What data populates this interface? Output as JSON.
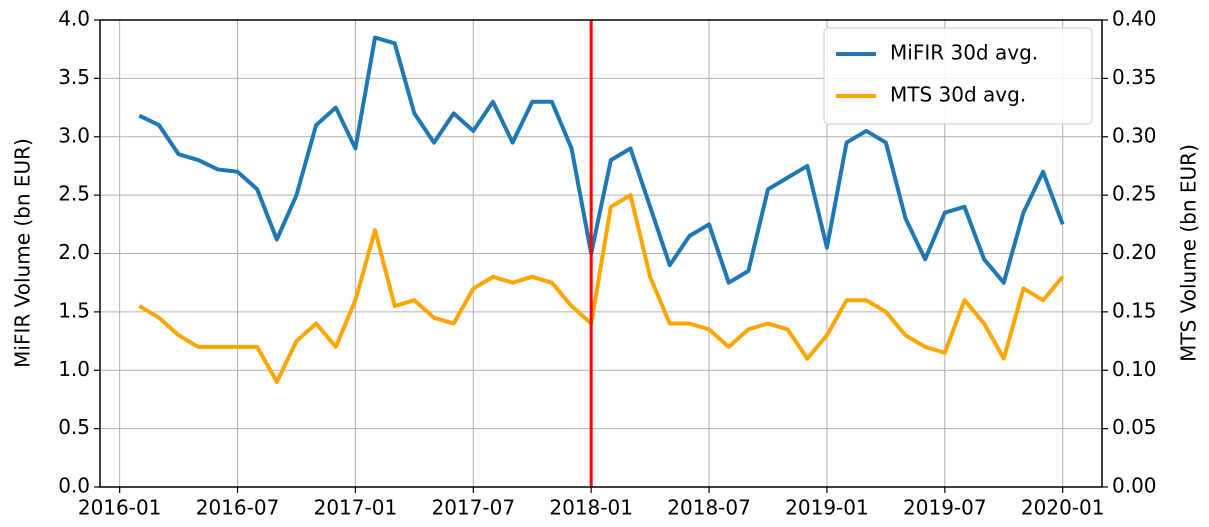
{
  "chart_data": {
    "type": "line",
    "y_label": "MiFIR Volume (bn EUR)",
    "y2_label": "MTS Volume (bn EUR)",
    "x": [
      "2016-02",
      "2016-03",
      "2016-04",
      "2016-05",
      "2016-06",
      "2016-07",
      "2016-08",
      "2016-09",
      "2016-10",
      "2016-11",
      "2016-12",
      "2017-01",
      "2017-02",
      "2017-03",
      "2017-04",
      "2017-05",
      "2017-06",
      "2017-07",
      "2017-08",
      "2017-09",
      "2017-10",
      "2017-11",
      "2017-12",
      "2018-01",
      "2018-02",
      "2018-03",
      "2018-04",
      "2018-05",
      "2018-06",
      "2018-07",
      "2018-08",
      "2018-09",
      "2018-10",
      "2018-11",
      "2018-12",
      "2019-01",
      "2019-02",
      "2019-03",
      "2019-04",
      "2019-05",
      "2019-06",
      "2019-07",
      "2019-08",
      "2019-09",
      "2019-10",
      "2019-11",
      "2019-12",
      "2020-01"
    ],
    "series": [
      {
        "name": "MiFIR 30d avg.",
        "color": "#1f77b4",
        "values": [
          3.18,
          3.1,
          2.85,
          2.8,
          2.72,
          2.7,
          2.55,
          2.12,
          2.5,
          3.1,
          3.25,
          2.9,
          3.85,
          3.8,
          3.2,
          2.95,
          3.2,
          3.05,
          3.3,
          2.95,
          3.3,
          3.3,
          2.9,
          2.0,
          2.8,
          2.9,
          2.4,
          1.9,
          2.15,
          2.25,
          1.75,
          1.85,
          2.55,
          2.65,
          2.75,
          2.05,
          2.95,
          3.05,
          2.95,
          2.3,
          1.95,
          2.35,
          2.4,
          1.95,
          1.75,
          2.35,
          2.7,
          2.25
        ]
      },
      {
        "name": "MTS 30d avg.",
        "color": "#ffa500",
        "axis": "y2",
        "values": [
          0.155,
          0.145,
          0.13,
          0.12,
          0.12,
          0.12,
          0.12,
          0.09,
          0.125,
          0.14,
          0.12,
          0.16,
          0.22,
          0.155,
          0.16,
          0.145,
          0.14,
          0.17,
          0.18,
          0.175,
          0.18,
          0.175,
          0.155,
          0.14,
          0.24,
          0.25,
          0.18,
          0.14,
          0.14,
          0.135,
          0.12,
          0.135,
          0.14,
          0.135,
          0.11,
          0.13,
          0.16,
          0.16,
          0.15,
          0.13,
          0.12,
          0.115,
          0.16,
          0.14,
          0.11,
          0.17,
          0.16,
          0.18
        ]
      }
    ],
    "xlim": [
      "2015-12",
      "2020-03"
    ],
    "xticks": [
      "2016-01",
      "2016-07",
      "2017-01",
      "2017-07",
      "2018-01",
      "2018-07",
      "2019-01",
      "2019-07",
      "2020-01"
    ],
    "ylim": [
      0,
      4
    ],
    "yticks": [
      {
        "value": 0,
        "label": "0.0"
      },
      {
        "value": 0.5,
        "label": "0.5"
      },
      {
        "value": 1,
        "label": "1.0"
      },
      {
        "value": 1.5,
        "label": "1.5"
      },
      {
        "value": 2,
        "label": "2.0"
      },
      {
        "value": 2.5,
        "label": "2.5"
      },
      {
        "value": 3,
        "label": "3.0"
      },
      {
        "value": 3.5,
        "label": "3.5"
      },
      {
        "value": 4,
        "label": "4.0"
      }
    ],
    "y2lim": [
      0,
      0.4
    ],
    "y2ticks": [
      {
        "value": 0,
        "label": "0.00"
      },
      {
        "value": 0.05,
        "label": "0.05"
      },
      {
        "value": 0.1,
        "label": "0.10"
      },
      {
        "value": 0.15,
        "label": "0.15"
      },
      {
        "value": 0.2,
        "label": "0.20"
      },
      {
        "value": 0.25,
        "label": "0.25"
      },
      {
        "value": 0.3,
        "label": "0.30"
      },
      {
        "value": 0.35,
        "label": "0.35"
      },
      {
        "value": 0.4,
        "label": "0.40"
      }
    ],
    "vline": {
      "x": "2018-01",
      "color": "#ff0000"
    },
    "grid": true,
    "legend": "upper right"
  }
}
